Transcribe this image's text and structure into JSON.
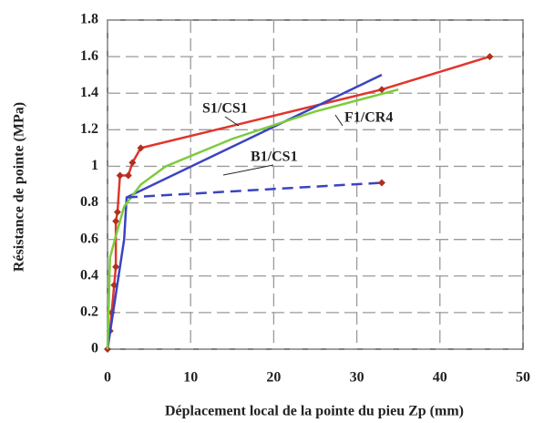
{
  "chart_data": {
    "type": "line",
    "x_label": "Déplacement local de la pointe du pieu Zp (mm)",
    "y_label": "Résistance de pointe (MPa)",
    "xlim": [
      0,
      50
    ],
    "xticks": [
      0,
      10,
      20,
      30,
      40,
      50
    ],
    "ylim": [
      0,
      1.8
    ],
    "yticks": [
      0,
      0.2,
      0.4,
      0.6,
      0.8,
      1,
      1.2,
      1.4,
      1.6,
      1.8
    ],
    "grid": true,
    "series": [
      {
        "name": "S1/CS1",
        "color": "#e0362c",
        "markers": true,
        "x": [
          0,
          0.3,
          0.5,
          0.8,
          1,
          1,
          1.2,
          1.5,
          2.5,
          3,
          4,
          33,
          46
        ],
        "values": [
          0,
          0.1,
          0.2,
          0.35,
          0.45,
          0.7,
          0.75,
          0.95,
          0.95,
          1.02,
          1.1,
          1.42,
          1.6
        ]
      },
      {
        "name": "B1/CS1",
        "color": "#3a44c0",
        "markers": false,
        "x": [
          0,
          1,
          2,
          2.3,
          33
        ],
        "values": [
          0,
          0.3,
          0.6,
          0.83,
          1.5
        ]
      },
      {
        "name": "F1/CR4",
        "color": "#7ccc3c",
        "markers": false,
        "x": [
          0,
          0.3,
          1,
          2,
          4,
          7,
          15,
          25,
          35
        ],
        "values": [
          0,
          0.5,
          0.62,
          0.78,
          0.9,
          1.0,
          1.15,
          1.3,
          1.42
        ]
      },
      {
        "color": "#3a44c0",
        "dashed": true,
        "markers": false,
        "x": [
          2.3,
          33
        ],
        "values": [
          0.83,
          0.91
        ]
      }
    ]
  }
}
